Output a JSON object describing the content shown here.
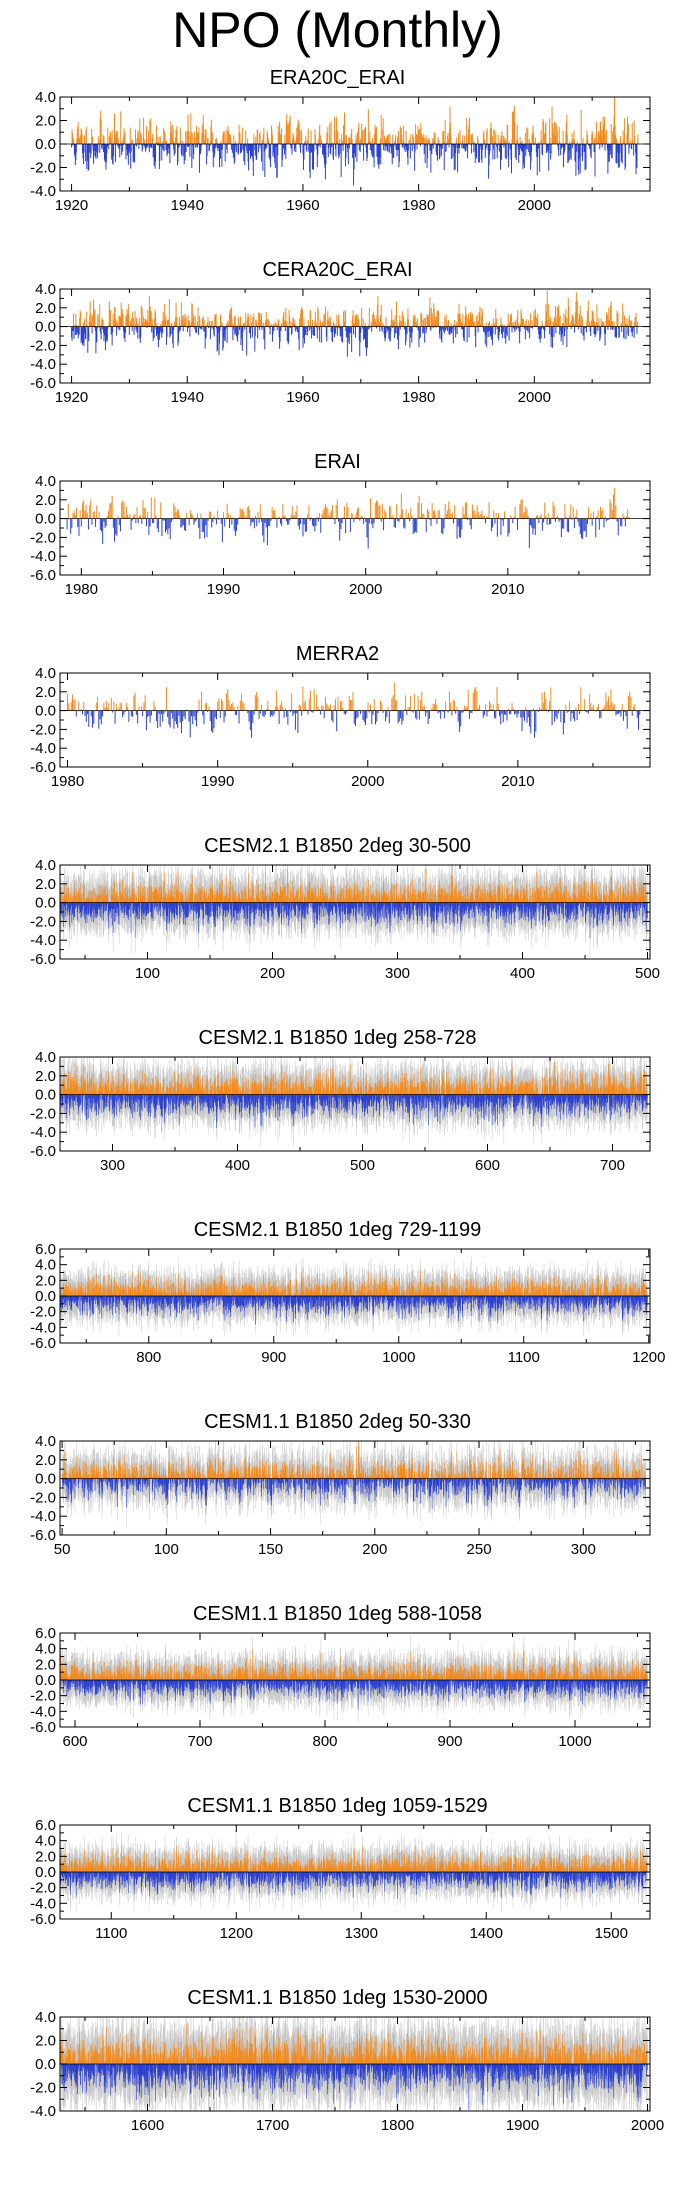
{
  "page": {
    "title": "NPO (Monthly)"
  },
  "colors": {
    "positive": "#f28a1e",
    "negative": "#2a40cf",
    "spread": "#c8c8c8",
    "axis": "#000000"
  },
  "chart_data": [
    {
      "type": "bar",
      "title": "ERA20C_ERAI",
      "xlim": [
        1918,
        2020
      ],
      "ylim": [
        -4,
        4
      ],
      "y_ticks": [
        4,
        2,
        0,
        -2,
        -4
      ],
      "y_tick_labels": [
        "4.0",
        "2.0",
        "0.0",
        "-2.0",
        "-4.0"
      ],
      "x_ticks": [
        1920,
        1940,
        1960,
        1980,
        2000
      ],
      "x_tick_labels": [
        "1920",
        "1940",
        "1960",
        "1980",
        "2000"
      ],
      "series": [
        {
          "data_start": 1920,
          "data_end": 2018,
          "months": 1188,
          "amplitude": 1.1,
          "spread": 0.0,
          "seed": 11
        }
      ]
    },
    {
      "type": "bar",
      "title": "CERA20C_ERAI",
      "xlim": [
        1918,
        2020
      ],
      "ylim": [
        -6,
        4
      ],
      "y_ticks": [
        4,
        2,
        0,
        -2,
        -4,
        -6
      ],
      "y_tick_labels": [
        "4.0",
        "2.0",
        "0.0",
        "-2.0",
        "-4.0",
        "-6.0"
      ],
      "x_ticks": [
        1920,
        1940,
        1960,
        1980,
        2000
      ],
      "x_tick_labels": [
        "1920",
        "1940",
        "1960",
        "1980",
        "2000"
      ],
      "series": [
        {
          "data_start": 1920,
          "data_end": 2018,
          "months": 1188,
          "amplitude": 1.1,
          "spread": 0.0,
          "seed": 23
        }
      ]
    },
    {
      "type": "bar",
      "title": "ERAI",
      "xlim": [
        1978.5,
        2020
      ],
      "ylim": [
        -6,
        4
      ],
      "y_ticks": [
        4,
        2,
        0,
        -2,
        -4,
        -6
      ],
      "y_tick_labels": [
        "4.0",
        "2.0",
        "0.0",
        "-2.0",
        "-4.0",
        "-6.0"
      ],
      "x_ticks": [
        1980,
        1990,
        2000,
        2010
      ],
      "x_tick_labels": [
        "1980",
        "1990",
        "2000",
        "2010"
      ],
      "series": [
        {
          "data_start": 1979,
          "data_end": 2018.6,
          "months": 475,
          "amplitude": 1.1,
          "spread": 0.0,
          "seed": 37
        }
      ]
    },
    {
      "type": "bar",
      "title": "MERRA2",
      "xlim": [
        1979.5,
        2018.8
      ],
      "ylim": [
        -6,
        4
      ],
      "y_ticks": [
        4,
        2,
        0,
        -2,
        -4,
        -6
      ],
      "y_tick_labels": [
        "4.0",
        "2.0",
        "0.0",
        "-2.0",
        "-4.0",
        "-6.0"
      ],
      "x_ticks": [
        1980,
        1990,
        2000,
        2010
      ],
      "x_tick_labels": [
        "1980",
        "1990",
        "2000",
        "2010"
      ],
      "series": [
        {
          "data_start": 1980,
          "data_end": 2018.2,
          "months": 458,
          "amplitude": 1.1,
          "spread": 0.0,
          "seed": 41
        }
      ]
    },
    {
      "type": "bar",
      "title": "CESM2.1 B1850 2deg 30-500",
      "xlim": [
        30,
        502
      ],
      "ylim": [
        -6,
        4
      ],
      "y_ticks": [
        4,
        2,
        0,
        -2,
        -4,
        -6
      ],
      "y_tick_labels": [
        "4.0",
        "2.0",
        "0.0",
        "-2.0",
        "-4.0",
        "-6.0"
      ],
      "x_ticks": [
        100,
        200,
        300,
        400,
        500
      ],
      "x_tick_labels": [
        "100",
        "200",
        "300",
        "400",
        "500"
      ],
      "series": [
        {
          "data_start": 30,
          "data_end": 500,
          "months": 5640,
          "amplitude": 1.0,
          "spread": 1.4,
          "seed": 53
        }
      ]
    },
    {
      "type": "bar",
      "title": "CESM2.1 B1850 1deg 258-728",
      "xlim": [
        258,
        730
      ],
      "ylim": [
        -6,
        4
      ],
      "y_ticks": [
        4,
        2,
        0,
        -2,
        -4,
        -6
      ],
      "y_tick_labels": [
        "4.0",
        "2.0",
        "0.0",
        "-2.0",
        "-4.0",
        "-6.0"
      ],
      "x_ticks": [
        300,
        400,
        500,
        600,
        700
      ],
      "x_tick_labels": [
        "300",
        "400",
        "500",
        "600",
        "700"
      ],
      "series": [
        {
          "data_start": 258,
          "data_end": 728,
          "months": 5640,
          "amplitude": 1.0,
          "spread": 1.4,
          "seed": 67
        }
      ]
    },
    {
      "type": "bar",
      "title": "CESM2.1 B1850 1deg 729-1199",
      "xlim": [
        729,
        1201
      ],
      "ylim": [
        -6,
        6
      ],
      "y_ticks": [
        6,
        4,
        2,
        0,
        -2,
        -4,
        -6
      ],
      "y_tick_labels": [
        "6.0",
        "4.0",
        "2.0",
        "0.0",
        "-2.0",
        "-4.0",
        "-6.0"
      ],
      "x_ticks": [
        800,
        900,
        1000,
        1100,
        1200
      ],
      "x_tick_labels": [
        "800",
        "900",
        "1000",
        "1100",
        "1200"
      ],
      "series": [
        {
          "data_start": 729,
          "data_end": 1199,
          "months": 5640,
          "amplitude": 1.0,
          "spread": 1.4,
          "seed": 71
        }
      ]
    },
    {
      "type": "bar",
      "title": "CESM1.1 B1850 2deg 50-330",
      "xlim": [
        49,
        332
      ],
      "ylim": [
        -6,
        4
      ],
      "y_ticks": [
        4,
        2,
        0,
        -2,
        -4,
        -6
      ],
      "y_tick_labels": [
        "4.0",
        "2.0",
        "0.0",
        "-2.0",
        "-4.0",
        "-6.0"
      ],
      "x_ticks": [
        50,
        100,
        150,
        200,
        250,
        300
      ],
      "x_tick_labels": [
        "50",
        "100",
        "150",
        "200",
        "250",
        "300"
      ],
      "series": [
        {
          "data_start": 50,
          "data_end": 330,
          "months": 3360,
          "amplitude": 1.0,
          "spread": 1.4,
          "seed": 83
        }
      ]
    },
    {
      "type": "bar",
      "title": "CESM1.1 B1850 1deg 588-1058",
      "xlim": [
        588,
        1060
      ],
      "ylim": [
        -6,
        6
      ],
      "y_ticks": [
        6,
        4,
        2,
        0,
        -2,
        -4,
        -6
      ],
      "y_tick_labels": [
        "6.0",
        "4.0",
        "2.0",
        "0.0",
        "-2.0",
        "-4.0",
        "-6.0"
      ],
      "x_ticks": [
        600,
        700,
        800,
        900,
        1000
      ],
      "x_tick_labels": [
        "600",
        "700",
        "800",
        "900",
        "1000"
      ],
      "series": [
        {
          "data_start": 588,
          "data_end": 1058,
          "months": 5640,
          "amplitude": 1.0,
          "spread": 1.4,
          "seed": 97
        }
      ]
    },
    {
      "type": "bar",
      "title": "CESM1.1 B1850 1deg 1059-1529",
      "xlim": [
        1059,
        1531
      ],
      "ylim": [
        -6,
        6
      ],
      "y_ticks": [
        6,
        4,
        2,
        0,
        -2,
        -4,
        -6
      ],
      "y_tick_labels": [
        "6.0",
        "4.0",
        "2.0",
        "0.0",
        "-2.0",
        "-4.0",
        "-6.0"
      ],
      "x_ticks": [
        1100,
        1200,
        1300,
        1400,
        1500
      ],
      "x_tick_labels": [
        "1100",
        "1200",
        "1300",
        "1400",
        "1500"
      ],
      "series": [
        {
          "data_start": 1059,
          "data_end": 1529,
          "months": 5640,
          "amplitude": 1.0,
          "spread": 1.4,
          "seed": 101
        }
      ]
    },
    {
      "type": "bar",
      "title": "CESM1.1 B1850 1deg 1530-2000",
      "xlim": [
        1530,
        2002
      ],
      "ylim": [
        -4,
        4
      ],
      "y_ticks": [
        4,
        2,
        0,
        -2,
        -4
      ],
      "y_tick_labels": [
        "4.0",
        "2.0",
        "0.0",
        "-2.0",
        "-4.0"
      ],
      "x_ticks": [
        1600,
        1700,
        1800,
        1900,
        2000
      ],
      "x_tick_labels": [
        "1600",
        "1700",
        "1800",
        "1900",
        "2000"
      ],
      "series": [
        {
          "data_start": 1530,
          "data_end": 2000,
          "months": 5640,
          "amplitude": 1.0,
          "spread": 1.6,
          "seed": 113
        }
      ]
    }
  ]
}
